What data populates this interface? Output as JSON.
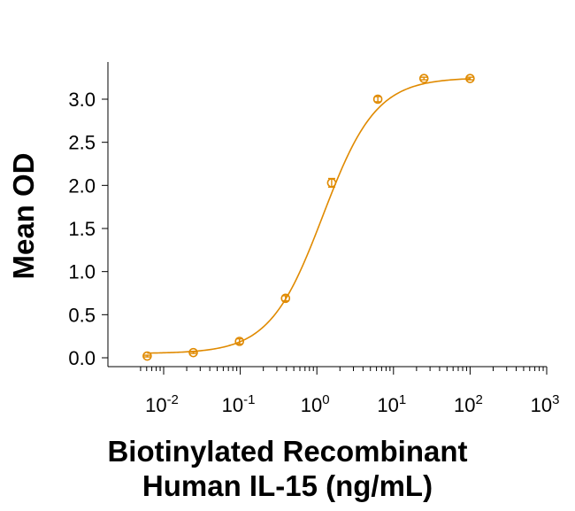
{
  "chart_data": {
    "type": "scatter",
    "title": "",
    "xlabel_line1": "Biotinylated Recombinant",
    "xlabel_line2": "Human IL-15 (ng/mL)",
    "ylabel": "Mean OD",
    "x_scale": "log",
    "xlim": [
      0.003,
      1000
    ],
    "ylim": [
      -0.1,
      3.5
    ],
    "y_ticks": [
      "0.0",
      "0.5",
      "1.0",
      "1.5",
      "2.0",
      "2.5",
      "3.0"
    ],
    "x_ticks": [
      {
        "base": "10",
        "exp": "-2"
      },
      {
        "base": "10",
        "exp": "-1"
      },
      {
        "base": "10",
        "exp": "0"
      },
      {
        "base": "10",
        "exp": "1"
      },
      {
        "base": "10",
        "exp": "2"
      },
      {
        "base": "10",
        "exp": "3"
      }
    ],
    "series": [
      {
        "name": "Mean OD",
        "color": "#E08A00",
        "x": [
          0.0061,
          0.0244,
          0.0977,
          0.39,
          1.56,
          6.25,
          25,
          100
        ],
        "y": [
          0.02,
          0.06,
          0.19,
          0.69,
          2.03,
          3.0,
          3.24,
          3.24
        ],
        "error": [
          0.01,
          0.01,
          0.03,
          0.03,
          0.05,
          0.03,
          0.015,
          0.015
        ]
      }
    ],
    "fit": {
      "model": "4PL",
      "bottom": 0.05,
      "top": 3.25,
      "ec50": 1.2,
      "hill": 1.25,
      "color": "#E08A00"
    }
  }
}
